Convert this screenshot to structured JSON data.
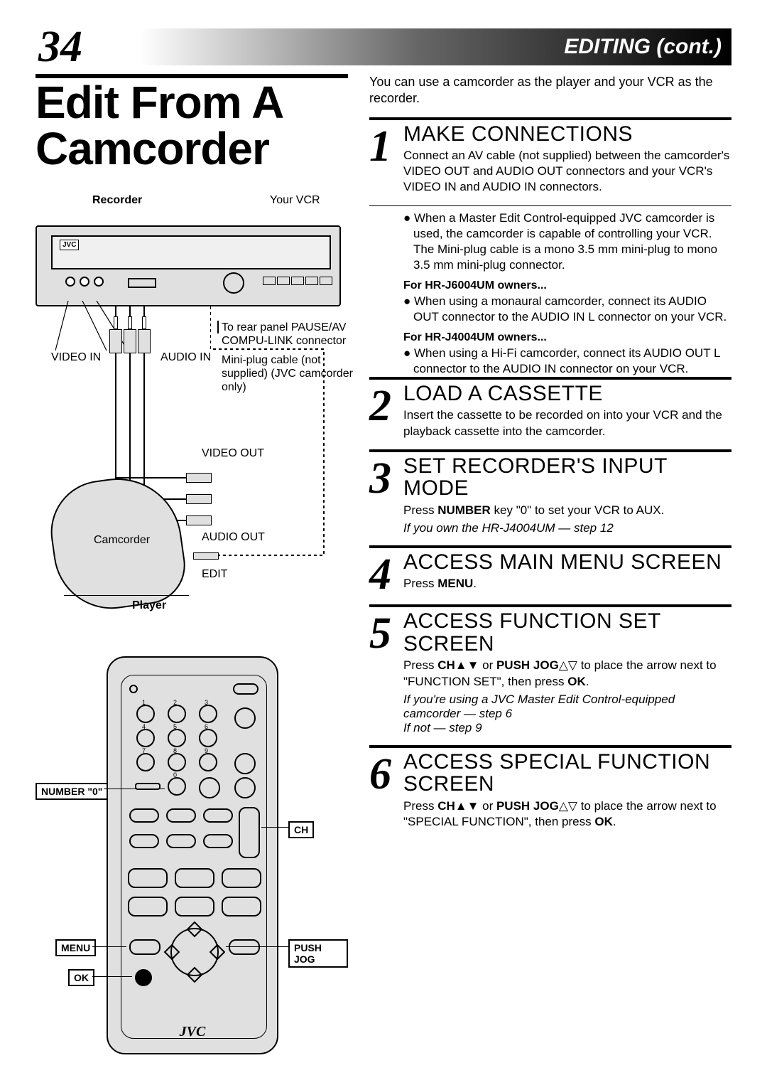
{
  "header": {
    "page_number": "34",
    "section": "EDITING (cont.)"
  },
  "title": "Edit From A Camcorder",
  "diagram": {
    "recorder_label": "Recorder",
    "your_vcr": "Your VCR",
    "video_in": "VIDEO IN",
    "audio_in": "AUDIO IN",
    "rear_note": "To rear panel PAUSE/AV COMPU-LINK connector",
    "miniplug_note": "Mini-plug cable (not supplied) (JVC camcorder only)",
    "video_out": "VIDEO OUT",
    "audio_out": "AUDIO OUT",
    "edit": "EDIT",
    "camcorder": "Camcorder",
    "player_label": "Player"
  },
  "remote_callouts": {
    "number0": "NUMBER \"0\"",
    "menu": "MENU",
    "ok": "OK",
    "ch": "CH",
    "push_jog": "PUSH JOG",
    "brand": "JVC"
  },
  "intro": "You can use a camcorder as the player and your VCR as the recorder.",
  "steps": [
    {
      "n": "1",
      "title": "MAKE CONNECTIONS",
      "body": "Connect an AV cable (not supplied) between the camcorder's VIDEO OUT and AUDIO OUT connectors and your VCR's VIDEO IN and AUDIO IN connectors.",
      "bullets": {
        "main": "When a Master Edit Control-equipped JVC camcorder is used, the camcorder is capable of controlling your VCR. The Mini-plug cable is a mono 3.5 mm mini-plug to mono 3.5 mm mini-plug connector.",
        "sub1_head": "For HR-J6004UM owners...",
        "sub1_body": "When using a monaural camcorder, connect its AUDIO OUT connector to the AUDIO IN L connector on your VCR.",
        "sub2_head": "For HR-J4004UM owners...",
        "sub2_body": "When using a Hi-Fi camcorder, connect its AUDIO OUT L connector to the AUDIO IN connector on your VCR."
      }
    },
    {
      "n": "2",
      "title": "LOAD A CASSETTE",
      "body": "Insert the cassette to be recorded on into your VCR and the playback cassette into the camcorder."
    },
    {
      "n": "3",
      "title": "SET RECORDER'S INPUT MODE",
      "body_html": "Press <b>NUMBER</b> key \"0\" to set your VCR to AUX.",
      "note": "If you own the HR-J4004UM — step 12"
    },
    {
      "n": "4",
      "title": "ACCESS MAIN MENU SCREEN",
      "body_html": "Press <b>MENU</b>."
    },
    {
      "n": "5",
      "title": "ACCESS FUNCTION SET SCREEN",
      "body_html": "Press <b>CH</b><span class='arrow-sym'>▲▼</span> or <b>PUSH JOG</b><span class='arrow-sym'>△▽</span> to place the arrow next to \"FUNCTION SET\", then press <b>OK</b>.",
      "note": "If you're using a JVC Master Edit Control-equipped camcorder — step 6\nIf not — step 9"
    },
    {
      "n": "6",
      "title": "ACCESS SPECIAL FUNCTION SCREEN",
      "body_html": "Press <b>CH</b><span class='arrow-sym'>▲▼</span> or <b>PUSH JOG</b><span class='arrow-sym'>△▽</span> to place the arrow next to \"SPECIAL FUNCTION\", then press <b>OK</b>."
    }
  ]
}
